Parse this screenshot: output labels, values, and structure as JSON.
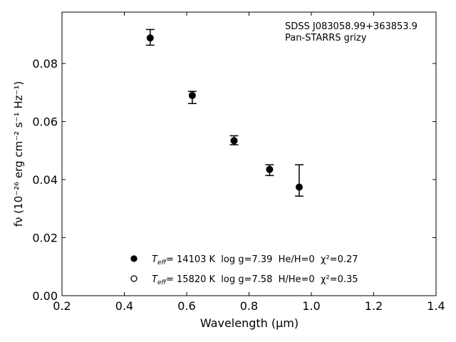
{
  "chart_data": {
    "type": "scatter",
    "title": "",
    "xlabel": "Wavelength (μm)",
    "ylabel": "fν (10⁻²⁶ erg cm⁻² s⁻¹ Hz⁻¹)",
    "xlim": [
      0.2,
      1.4
    ],
    "ylim": [
      0.0,
      0.0977
    ],
    "xticks": [
      "0.2",
      "0.4",
      "0.6",
      "0.8",
      "1.0",
      "1.2",
      "1.4"
    ],
    "yticks": [
      "0.00",
      "0.02",
      "0.04",
      "0.06",
      "0.08"
    ],
    "grid": false,
    "annotation": [
      "SDSS J083058.99+363853.9",
      "Pan-STARRS grizy"
    ],
    "series": [
      {
        "marker": "filled-circle-errorbar",
        "color": "#000000",
        "x": [
          0.483,
          0.618,
          0.752,
          0.866,
          0.961
        ],
        "y": [
          0.0888,
          0.069,
          0.0534,
          0.0435,
          0.0374
        ],
        "yerr_upper": [
          0.0917,
          0.0704,
          0.0551,
          0.0451,
          0.0451
        ],
        "yerr_lower": [
          0.0863,
          0.0662,
          0.052,
          0.0414,
          0.0343
        ]
      }
    ],
    "legend": {
      "placement": "lower-center",
      "entries": [
        {
          "marker": "filled-circle",
          "teff_label": "T",
          "teff_sub": "eff",
          "text": "= 14103 K  log g=7.39  He/H=0  χ²=0.27"
        },
        {
          "marker": "open-circle",
          "teff_label": "T",
          "teff_sub": "eff",
          "text": "= 15820 K  log g=7.58  H/He=0  χ²=0.35"
        }
      ]
    }
  }
}
